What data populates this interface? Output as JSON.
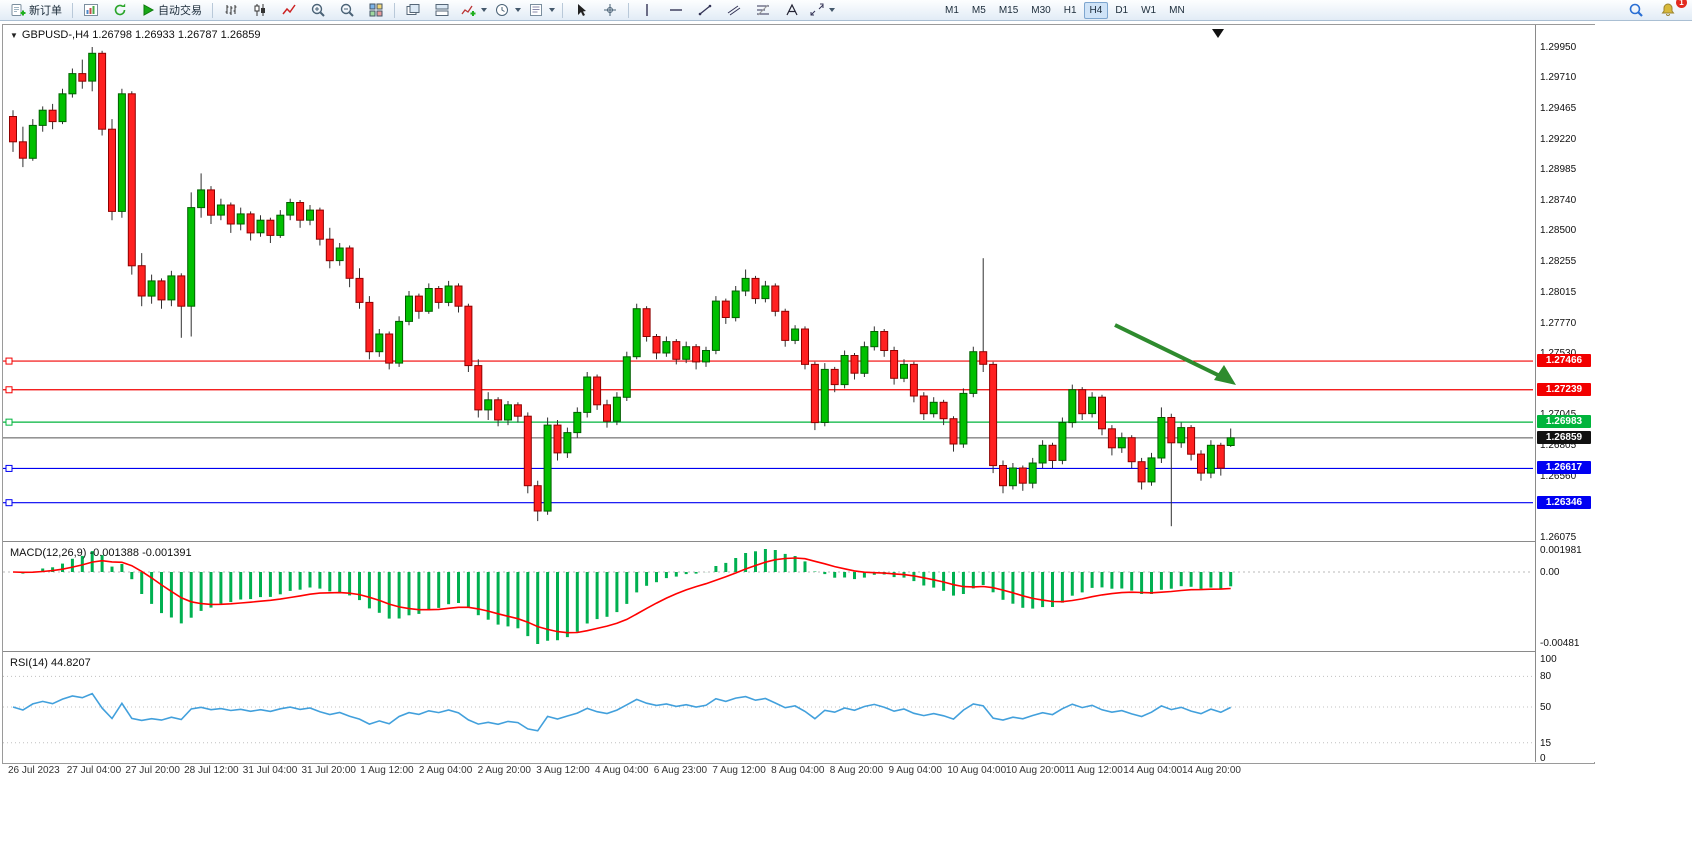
{
  "toolbar": {
    "new_order_label": "新订单",
    "autotrade_label": "自动交易",
    "timeframes": [
      "M1",
      "M5",
      "M15",
      "M30",
      "H1",
      "H4",
      "D1",
      "W1",
      "MN"
    ],
    "active_timeframe": "H4",
    "alert_badge": "1"
  },
  "chart": {
    "title": "GBPUSD-,H4  1.26798 1.26933 1.26787 1.26859"
  },
  "indicators": {
    "macd": {
      "label": "MACD(12,26,9) -0.001388 -0.001391",
      "fast": 12,
      "slow": 26,
      "signal": 9,
      "axis_ticks": [
        "0.001981",
        "0.00",
        "-0.00481"
      ]
    },
    "rsi": {
      "label": "RSI(14) 44.8207",
      "period": 14,
      "levels": [
        80,
        50,
        15
      ],
      "axis_ticks": [
        "100",
        "80",
        "50",
        "15",
        "0"
      ]
    }
  },
  "chart_data": {
    "type": "candlestick",
    "symbol": "GBPUSD-",
    "timeframe": "H4",
    "ylim": [
      1.26043,
      1.30124
    ],
    "y_ticks": [
      "1.29950",
      "1.29710",
      "1.29465",
      "1.29220",
      "1.28985",
      "1.28740",
      "1.28500",
      "1.28255",
      "1.28015",
      "1.27770",
      "1.27530",
      "1.27045",
      "1.26805",
      "1.26560",
      "1.26075"
    ],
    "levels": [
      {
        "price": 1.27466,
        "label": "1.27466",
        "color": "#f20000"
      },
      {
        "price": 1.27239,
        "label": "1.27239",
        "color": "#f20000"
      },
      {
        "price": 1.26983,
        "label": "1.26983",
        "color": "#00b43c"
      },
      {
        "price": 1.26617,
        "label": "1.26617",
        "color": "#0000f2"
      },
      {
        "price": 1.26346,
        "label": "1.26346",
        "color": "#0000f2"
      }
    ],
    "current": {
      "price": 1.26859,
      "label": "1.26859",
      "color": "#111111"
    },
    "colors": {
      "up": "#00c000",
      "up_border": "#006000",
      "down": "#ff2020",
      "down_border": "#900000",
      "wick": "#303030",
      "macd_hist": "#00b050",
      "macd_signal": "#ff0000",
      "rsi_line": "#42a0dc",
      "arrow": "#2e8b2e"
    },
    "x_labels": [
      "26 Jul 2023",
      "27 Jul 04:00",
      "27 Jul 20:00",
      "28 Jul 12:00",
      "31 Jul 04:00",
      "31 Jul 20:00",
      "1 Aug 12:00",
      "2 Aug 04:00",
      "2 Aug 20:00",
      "3 Aug 12:00",
      "4 Aug 04:00",
      "6 Aug 23:00",
      "7 Aug 12:00",
      "8 Aug 04:00",
      "8 Aug 20:00",
      "9 Aug 04:00",
      "10 Aug 04:00",
      "10 Aug 20:00",
      "11 Aug 12:00",
      "14 Aug 04:00",
      "14 Aug 20:00"
    ],
    "ohlc": [
      [
        1.294,
        1.2945,
        1.2912,
        1.292
      ],
      [
        1.292,
        1.2932,
        1.29,
        1.2907
      ],
      [
        1.2907,
        1.2938,
        1.2905,
        1.2933
      ],
      [
        1.2933,
        1.2948,
        1.2928,
        1.2945
      ],
      [
        1.2945,
        1.295,
        1.293,
        1.2936
      ],
      [
        1.2936,
        1.2962,
        1.2934,
        1.2958
      ],
      [
        1.2958,
        1.2978,
        1.2955,
        1.2974
      ],
      [
        1.2974,
        1.2985,
        1.2962,
        1.2968
      ],
      [
        1.2968,
        1.2995,
        1.296,
        1.299
      ],
      [
        1.299,
        1.2992,
        1.2925,
        1.293
      ],
      [
        1.293,
        1.2938,
        1.2858,
        1.2865
      ],
      [
        1.2865,
        1.2962,
        1.286,
        1.2958
      ],
      [
        1.2958,
        1.296,
        1.2815,
        1.2822
      ],
      [
        1.2822,
        1.2832,
        1.279,
        1.2798
      ],
      [
        1.2798,
        1.2815,
        1.2792,
        1.281
      ],
      [
        1.281,
        1.2812,
        1.2788,
        1.2795
      ],
      [
        1.2795,
        1.2818,
        1.279,
        1.2814
      ],
      [
        1.2814,
        1.2816,
        1.2765,
        1.279
      ],
      [
        1.279,
        1.288,
        1.2766,
        1.2868
      ],
      [
        1.2868,
        1.2895,
        1.286,
        1.2882
      ],
      [
        1.2882,
        1.2885,
        1.2855,
        1.2862
      ],
      [
        1.2862,
        1.2875,
        1.2858,
        1.287
      ],
      [
        1.287,
        1.2872,
        1.2848,
        1.2855
      ],
      [
        1.2855,
        1.2868,
        1.285,
        1.2863
      ],
      [
        1.2863,
        1.2865,
        1.2842,
        1.2848
      ],
      [
        1.2848,
        1.2862,
        1.2845,
        1.2858
      ],
      [
        1.2858,
        1.286,
        1.284,
        1.2846
      ],
      [
        1.2846,
        1.2866,
        1.2844,
        1.2862
      ],
      [
        1.2862,
        1.2875,
        1.2858,
        1.2872
      ],
      [
        1.2872,
        1.2874,
        1.2852,
        1.2858
      ],
      [
        1.2858,
        1.287,
        1.2854,
        1.2866
      ],
      [
        1.2866,
        1.2868,
        1.2838,
        1.2843
      ],
      [
        1.2843,
        1.2852,
        1.282,
        1.2826
      ],
      [
        1.2826,
        1.284,
        1.2822,
        1.2836
      ],
      [
        1.2836,
        1.2838,
        1.2805,
        1.2812
      ],
      [
        1.2812,
        1.282,
        1.2788,
        1.2793
      ],
      [
        1.2793,
        1.2798,
        1.2748,
        1.2754
      ],
      [
        1.2754,
        1.2772,
        1.275,
        1.2768
      ],
      [
        1.2768,
        1.277,
        1.274,
        1.2745
      ],
      [
        1.2745,
        1.2782,
        1.2742,
        1.2778
      ],
      [
        1.2778,
        1.2802,
        1.2775,
        1.2798
      ],
      [
        1.2798,
        1.28,
        1.278,
        1.2786
      ],
      [
        1.2786,
        1.2808,
        1.2784,
        1.2804
      ],
      [
        1.2804,
        1.2806,
        1.2788,
        1.2793
      ],
      [
        1.2793,
        1.281,
        1.279,
        1.2806
      ],
      [
        1.2806,
        1.2808,
        1.2785,
        1.279
      ],
      [
        1.279,
        1.2792,
        1.2738,
        1.2743
      ],
      [
        1.2743,
        1.2748,
        1.2702,
        1.2708
      ],
      [
        1.2708,
        1.2722,
        1.27,
        1.2716
      ],
      [
        1.2716,
        1.2718,
        1.2695,
        1.27
      ],
      [
        1.27,
        1.2715,
        1.2696,
        1.2712
      ],
      [
        1.2712,
        1.2714,
        1.2698,
        1.2703
      ],
      [
        1.2703,
        1.2706,
        1.2642,
        1.2648
      ],
      [
        1.2648,
        1.2652,
        1.262,
        1.2628
      ],
      [
        1.2628,
        1.2702,
        1.2625,
        1.2696
      ],
      [
        1.2696,
        1.27,
        1.2668,
        1.2674
      ],
      [
        1.2674,
        1.2694,
        1.267,
        1.269
      ],
      [
        1.269,
        1.271,
        1.2686,
        1.2706
      ],
      [
        1.2706,
        1.2738,
        1.2702,
        1.2734
      ],
      [
        1.2734,
        1.2736,
        1.2708,
        1.2712
      ],
      [
        1.2712,
        1.2716,
        1.2694,
        1.2699
      ],
      [
        1.2699,
        1.2722,
        1.2696,
        1.2718
      ],
      [
        1.2718,
        1.2754,
        1.2715,
        1.275
      ],
      [
        1.275,
        1.2792,
        1.2748,
        1.2788
      ],
      [
        1.2788,
        1.279,
        1.2762,
        1.2766
      ],
      [
        1.2766,
        1.2768,
        1.2748,
        1.2753
      ],
      [
        1.2753,
        1.2766,
        1.275,
        1.2762
      ],
      [
        1.2762,
        1.2764,
        1.2744,
        1.2748
      ],
      [
        1.2748,
        1.2762,
        1.2745,
        1.2758
      ],
      [
        1.2758,
        1.276,
        1.274,
        1.2746
      ],
      [
        1.2746,
        1.2758,
        1.2742,
        1.2755
      ],
      [
        1.2755,
        1.2798,
        1.2752,
        1.2794
      ],
      [
        1.2794,
        1.2796,
        1.2776,
        1.2781
      ],
      [
        1.2781,
        1.2806,
        1.2778,
        1.2802
      ],
      [
        1.2802,
        1.2819,
        1.2798,
        1.2812
      ],
      [
        1.2812,
        1.2814,
        1.2792,
        1.2796
      ],
      [
        1.2796,
        1.281,
        1.2793,
        1.2806
      ],
      [
        1.2806,
        1.2808,
        1.2782,
        1.2786
      ],
      [
        1.2786,
        1.2788,
        1.2758,
        1.2763
      ],
      [
        1.2763,
        1.2775,
        1.276,
        1.2772
      ],
      [
        1.2772,
        1.2774,
        1.274,
        1.2744
      ],
      [
        1.2744,
        1.2746,
        1.2692,
        1.2698
      ],
      [
        1.2698,
        1.2745,
        1.2695,
        1.274
      ],
      [
        1.274,
        1.2742,
        1.2722,
        1.2728
      ],
      [
        1.2728,
        1.2755,
        1.2725,
        1.2751
      ],
      [
        1.2751,
        1.2753,
        1.2732,
        1.2737
      ],
      [
        1.2737,
        1.2762,
        1.2734,
        1.2758
      ],
      [
        1.2758,
        1.2774,
        1.2755,
        1.277
      ],
      [
        1.277,
        1.2772,
        1.275,
        1.2755
      ],
      [
        1.2755,
        1.2758,
        1.2728,
        1.2733
      ],
      [
        1.2733,
        1.2748,
        1.273,
        1.2744
      ],
      [
        1.2744,
        1.2746,
        1.2714,
        1.2719
      ],
      [
        1.2719,
        1.2722,
        1.27,
        1.2705
      ],
      [
        1.2705,
        1.2718,
        1.2702,
        1.2714
      ],
      [
        1.2714,
        1.2716,
        1.2696,
        1.2701
      ],
      [
        1.2701,
        1.2703,
        1.2675,
        1.2681
      ],
      [
        1.2681,
        1.2725,
        1.2678,
        1.2721
      ],
      [
        1.2721,
        1.2758,
        1.2718,
        1.2754
      ],
      [
        1.2754,
        1.2828,
        1.2738,
        1.2744
      ],
      [
        1.2744,
        1.2746,
        1.2658,
        1.2664
      ],
      [
        1.2664,
        1.2668,
        1.2642,
        1.2648
      ],
      [
        1.2648,
        1.2666,
        1.2645,
        1.2662
      ],
      [
        1.2662,
        1.2664,
        1.2644,
        1.265
      ],
      [
        1.265,
        1.267,
        1.2646,
        1.2666
      ],
      [
        1.2666,
        1.2684,
        1.2662,
        1.268
      ],
      [
        1.268,
        1.2682,
        1.2662,
        1.2668
      ],
      [
        1.2668,
        1.2702,
        1.2665,
        1.2698
      ],
      [
        1.2698,
        1.2728,
        1.2694,
        1.2724
      ],
      [
        1.2724,
        1.2726,
        1.27,
        1.2705
      ],
      [
        1.2705,
        1.2722,
        1.2702,
        1.2718
      ],
      [
        1.2718,
        1.272,
        1.2688,
        1.2693
      ],
      [
        1.2693,
        1.2696,
        1.2672,
        1.2678
      ],
      [
        1.2678,
        1.269,
        1.2674,
        1.2686
      ],
      [
        1.2686,
        1.2688,
        1.2662,
        1.2667
      ],
      [
        1.2667,
        1.267,
        1.2645,
        1.2651
      ],
      [
        1.2651,
        1.2674,
        1.2648,
        1.267
      ],
      [
        1.267,
        1.271,
        1.2666,
        1.2702
      ],
      [
        1.2702,
        1.2705,
        1.2616,
        1.2682
      ],
      [
        1.2682,
        1.2698,
        1.2678,
        1.2694
      ],
      [
        1.2694,
        1.2696,
        1.2668,
        1.2673
      ],
      [
        1.2673,
        1.2676,
        1.2652,
        1.2658
      ],
      [
        1.2658,
        1.2684,
        1.2654,
        1.268
      ],
      [
        1.268,
        1.2682,
        1.2656,
        1.2662
      ],
      [
        1.26798,
        1.26933,
        1.26787,
        1.26859
      ]
    ]
  }
}
